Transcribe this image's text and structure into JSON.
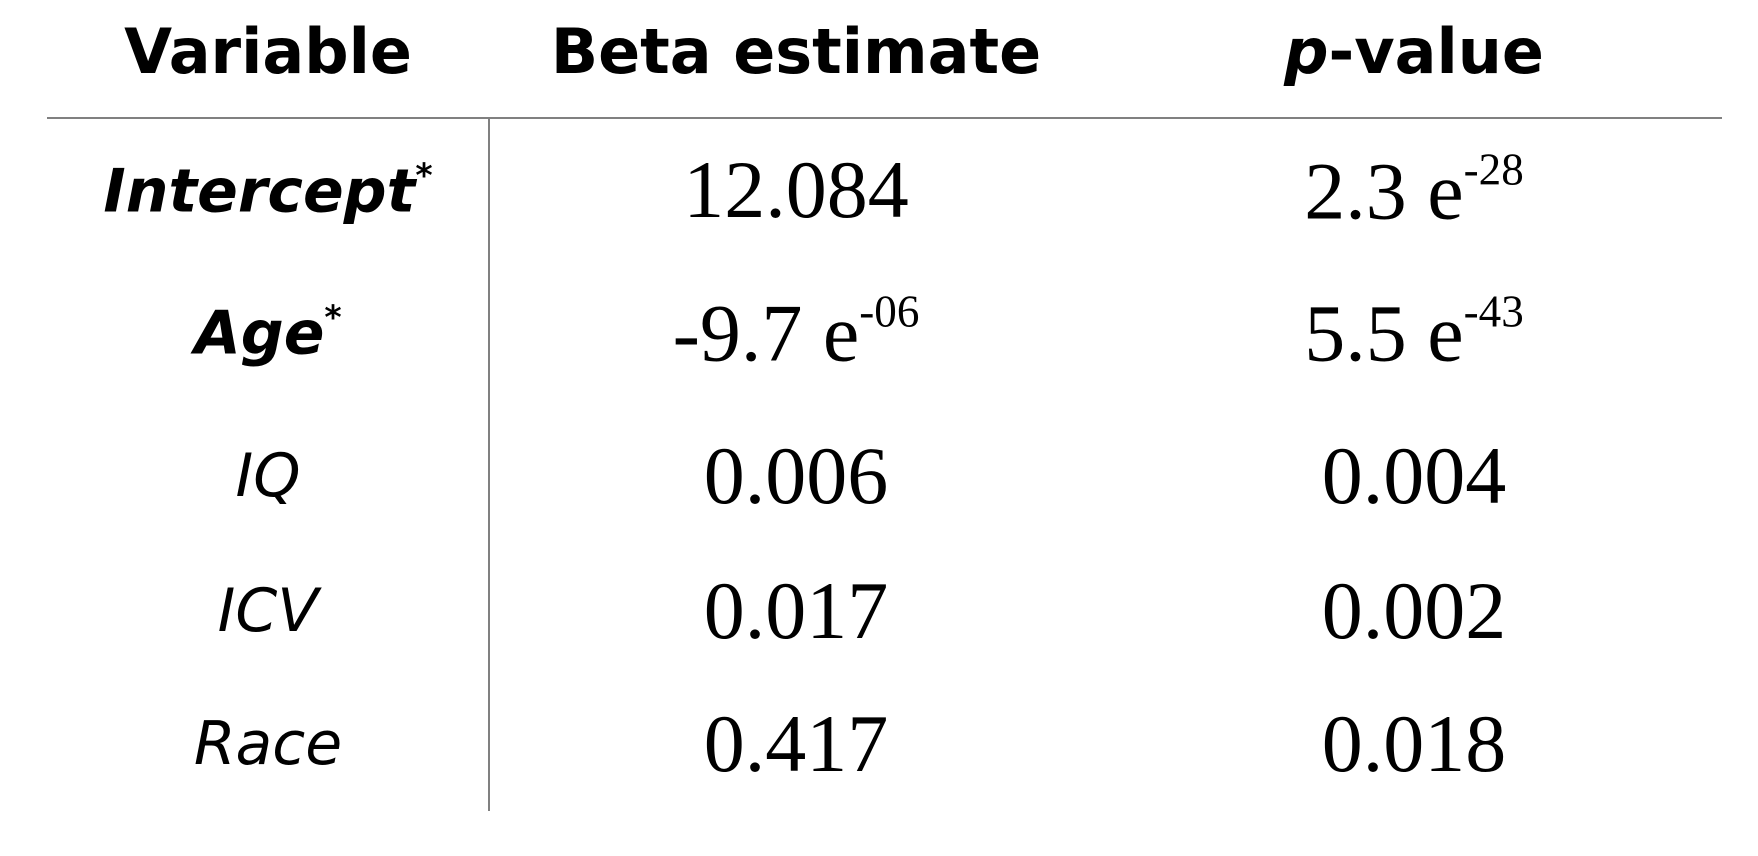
{
  "table": {
    "headers": {
      "variable": "Variable",
      "beta": "Beta estimate",
      "p_italic": "p",
      "p_rest": "-value"
    },
    "rows": [
      {
        "variable": "Intercept",
        "variable_mark": "*",
        "beta": "12.084",
        "p": "2.3 e",
        "p_exp": "-28"
      },
      {
        "variable": "Age",
        "variable_mark": "*",
        "beta": "-9.7 e",
        "beta_exp": "-06",
        "p": "5.5 e",
        "p_exp": "-43"
      },
      {
        "variable": "IQ",
        "beta": "0.006",
        "p": "0.004"
      },
      {
        "variable": "ICV",
        "beta": "0.017",
        "p": "0.002"
      },
      {
        "variable": "Race",
        "beta": "0.417",
        "p": "0.018"
      }
    ]
  }
}
